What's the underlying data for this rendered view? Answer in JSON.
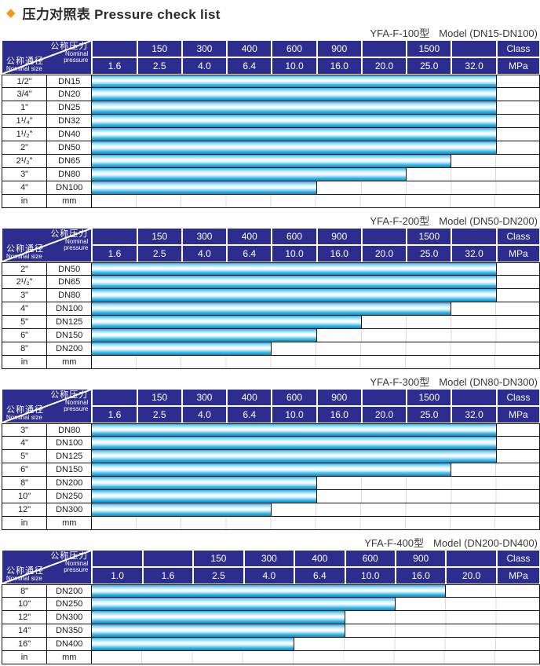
{
  "page": {
    "title_zh": "压力对照表",
    "title_en": "Pressure check list",
    "diamond_icon": "diamond-bullet",
    "colors": {
      "header_bg": "#2d2d8f",
      "bar_cyan": "#29abe2",
      "diamond_orange": "#f7941d",
      "tick_line": "#e7d5d5",
      "border_black": "#111111"
    }
  },
  "corner": {
    "pressure_zh": "公称压力",
    "pressure_en_1": "Nominal",
    "pressure_en_2": "pressure",
    "size_zh": "公称通径",
    "size_en": "Nominal size"
  },
  "tables": [
    {
      "subtitle_model": "YFA-F-100型",
      "subtitle_range": "Model (DN15-DN100)",
      "class_row": [
        "",
        "150",
        "300",
        "400",
        "600",
        "900",
        "",
        "1500",
        "",
        "Class"
      ],
      "mpa_row": [
        "1.6",
        "2.5",
        "4.0",
        "6.4",
        "10.0",
        "16.0",
        "20.0",
        "25.0",
        "32.0",
        "MPa"
      ],
      "unit_row": [
        "in",
        "mm"
      ],
      "rows": [
        {
          "inch": "1/2\"",
          "dn": "DN15",
          "bar_cols": 9,
          "max_mpa": "32.0"
        },
        {
          "inch": "3/4\"",
          "dn": "DN20",
          "bar_cols": 9,
          "max_mpa": "32.0"
        },
        {
          "inch": "1\"",
          "dn": "DN25",
          "bar_cols": 9,
          "max_mpa": "32.0"
        },
        {
          "inch": "1¹/₄\"",
          "dn": "DN32",
          "bar_cols": 9,
          "max_mpa": "32.0"
        },
        {
          "inch": "1¹/₂\"",
          "dn": "DN40",
          "bar_cols": 9,
          "max_mpa": "32.0"
        },
        {
          "inch": "2\"",
          "dn": "DN50",
          "bar_cols": 9,
          "max_mpa": "32.0"
        },
        {
          "inch": "2¹/₂\"",
          "dn": "DN65",
          "bar_cols": 8,
          "max_mpa": "25.0"
        },
        {
          "inch": "3\"",
          "dn": "DN80",
          "bar_cols": 7,
          "max_mpa": "20.0"
        },
        {
          "inch": "4\"",
          "dn": "DN100",
          "bar_cols": 5,
          "max_mpa": "10.0"
        }
      ]
    },
    {
      "subtitle_model": "YFA-F-200型",
      "subtitle_range": "Model (DN50-DN200)",
      "class_row": [
        "",
        "150",
        "300",
        "400",
        "600",
        "900",
        "",
        "1500",
        "",
        "Class"
      ],
      "mpa_row": [
        "1.6",
        "2.5",
        "4.0",
        "6.4",
        "10.0",
        "16.0",
        "20.0",
        "25.0",
        "32.0",
        "MPa"
      ],
      "unit_row": [
        "in",
        "mm"
      ],
      "rows": [
        {
          "inch": "2\"",
          "dn": "DN50",
          "bar_cols": 9,
          "max_mpa": "32.0"
        },
        {
          "inch": "2¹/₂\"",
          "dn": "DN65",
          "bar_cols": 9,
          "max_mpa": "32.0"
        },
        {
          "inch": "3\"",
          "dn": "DN80",
          "bar_cols": 9,
          "max_mpa": "32.0"
        },
        {
          "inch": "4\"",
          "dn": "DN100",
          "bar_cols": 8,
          "max_mpa": "25.0"
        },
        {
          "inch": "5\"",
          "dn": "DN125",
          "bar_cols": 6,
          "max_mpa": "16.0"
        },
        {
          "inch": "6\"",
          "dn": "DN150",
          "bar_cols": 5,
          "max_mpa": "10.0"
        },
        {
          "inch": "8\"",
          "dn": "DN200",
          "bar_cols": 4,
          "max_mpa": "6.4"
        }
      ]
    },
    {
      "subtitle_model": "YFA-F-300型",
      "subtitle_range": "Model (DN80-DN300)",
      "class_row": [
        "",
        "150",
        "300",
        "400",
        "600",
        "900",
        "",
        "1500",
        "",
        "Class"
      ],
      "mpa_row": [
        "1.6",
        "2.5",
        "4.0",
        "6.4",
        "10.0",
        "16.0",
        "20.0",
        "25.0",
        "32.0",
        "MPa"
      ],
      "unit_row": [
        "in",
        "mm"
      ],
      "rows": [
        {
          "inch": "3\"",
          "dn": "DN80",
          "bar_cols": 9,
          "max_mpa": "32.0"
        },
        {
          "inch": "4\"",
          "dn": "DN100",
          "bar_cols": 9,
          "max_mpa": "32.0"
        },
        {
          "inch": "5\"",
          "dn": "DN125",
          "bar_cols": 9,
          "max_mpa": "32.0"
        },
        {
          "inch": "6\"",
          "dn": "DN150",
          "bar_cols": 8,
          "max_mpa": "25.0"
        },
        {
          "inch": "8\"",
          "dn": "DN200",
          "bar_cols": 5,
          "max_mpa": "10.0"
        },
        {
          "inch": "10\"",
          "dn": "DN250",
          "bar_cols": 5,
          "max_mpa": "10.0"
        },
        {
          "inch": "12\"",
          "dn": "DN300",
          "bar_cols": 4,
          "max_mpa": "6.4"
        }
      ]
    },
    {
      "subtitle_model": "YFA-F-400型",
      "subtitle_range": "Model (DN200-DN400)",
      "class_row": [
        "",
        "",
        "150",
        "300",
        "400",
        "600",
        "900",
        "",
        "Class"
      ],
      "mpa_row": [
        "1.0",
        "1.6",
        "2.5",
        "4.0",
        "6.4",
        "10.0",
        "16.0",
        "20.0",
        "MPa"
      ],
      "unit_row": [
        "in",
        "mm"
      ],
      "rows": [
        {
          "inch": "8\"",
          "dn": "DN200",
          "bar_cols": 7,
          "max_mpa": "16.0"
        },
        {
          "inch": "10\"",
          "dn": "DN250",
          "bar_cols": 6,
          "max_mpa": "10.0"
        },
        {
          "inch": "12\"",
          "dn": "DN300",
          "bar_cols": 5,
          "max_mpa": "6.4"
        },
        {
          "inch": "14\"",
          "dn": "DN350",
          "bar_cols": 5,
          "max_mpa": "6.4"
        },
        {
          "inch": "16\"",
          "dn": "DN400",
          "bar_cols": 4,
          "max_mpa": "4.0"
        }
      ]
    }
  ]
}
